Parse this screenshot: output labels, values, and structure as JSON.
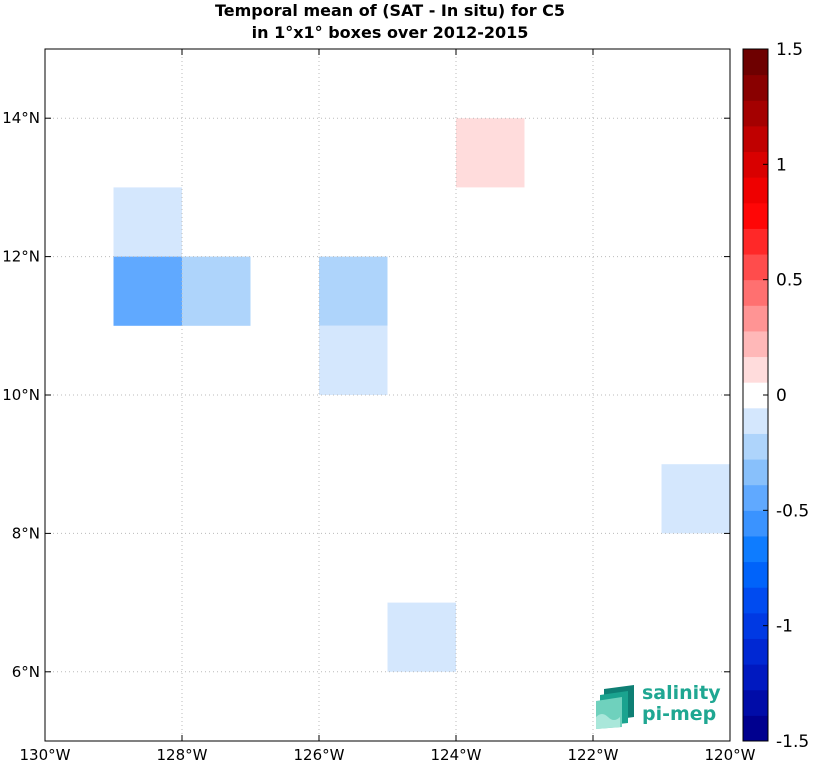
{
  "chart_data": {
    "type": "heatmap",
    "title": [
      "Temporal mean of (SAT - In situ) for C5",
      "in 1°x1° boxes over 2012-2015"
    ],
    "xlim": [
      -130,
      -120
    ],
    "ylim": [
      5,
      15
    ],
    "x_ticks": [
      -130,
      -128,
      -126,
      -124,
      -122,
      -120
    ],
    "x_tick_labels": [
      "130°W",
      "128°W",
      "126°W",
      "124°W",
      "122°W",
      "120°W"
    ],
    "y_ticks": [
      6,
      8,
      10,
      12,
      14
    ],
    "y_tick_labels": [
      "6°N",
      "8°N",
      "10°N",
      "12°N",
      "14°N"
    ],
    "grid": true,
    "cells": [
      {
        "lon": [
          -129,
          -128
        ],
        "lat": [
          12,
          13
        ],
        "value": -0.1
      },
      {
        "lon": [
          -129,
          -128
        ],
        "lat": [
          11,
          12
        ],
        "value": -0.4
      },
      {
        "lon": [
          -128,
          -127
        ],
        "lat": [
          11,
          12
        ],
        "value": -0.25
      },
      {
        "lon": [
          -126,
          -125
        ],
        "lat": [
          11,
          12
        ],
        "value": -0.25
      },
      {
        "lon": [
          -126,
          -125
        ],
        "lat": [
          10,
          11
        ],
        "value": -0.1
      },
      {
        "lon": [
          -124,
          -123
        ],
        "lat": [
          13,
          14
        ],
        "value": 0.15
      },
      {
        "lon": [
          -121,
          -120
        ],
        "lat": [
          8,
          9
        ],
        "value": -0.15
      },
      {
        "lon": [
          -125,
          -124
        ],
        "lat": [
          6,
          7
        ],
        "value": -0.15
      }
    ],
    "colorbar": {
      "range": [
        -1.5,
        1.5
      ],
      "ticks": [
        1.5,
        1,
        0.5,
        0,
        -0.5,
        -1,
        -1.5
      ],
      "tick_labels": [
        "1.5",
        "1",
        "0.5",
        "0",
        "-0.5",
        "-1",
        "-1.5"
      ]
    }
  },
  "logo": {
    "line1": "salinity",
    "line2": "pi-mep"
  }
}
